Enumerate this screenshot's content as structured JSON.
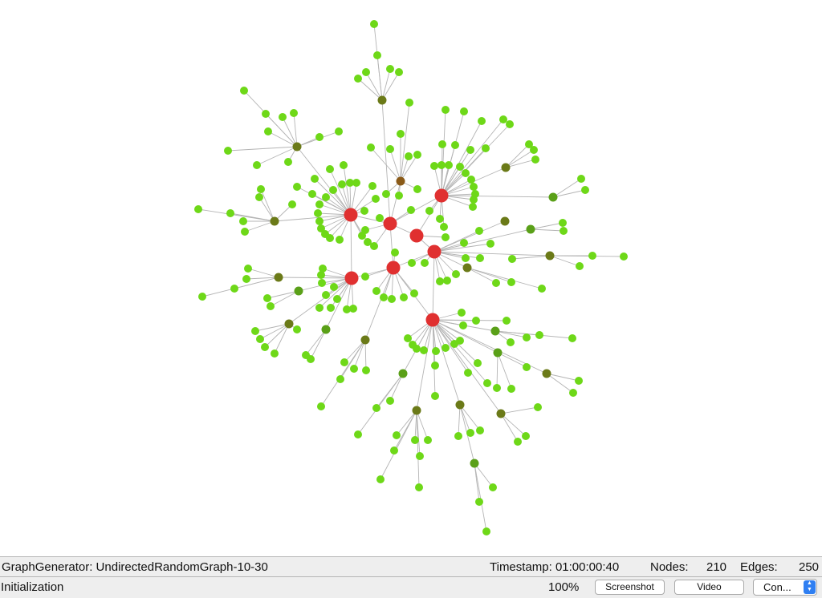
{
  "status_bar": {
    "generator": "GraphGenerator: UndirectedRandomGraph-10-30",
    "timestamp": "Timestamp: 01:00:00:40",
    "nodes_label": "Nodes:",
    "nodes_value": "210",
    "edges_label": "Edges:",
    "edges_value": "250"
  },
  "toolbar": {
    "state": "Initialization",
    "zoom": "100%",
    "screenshot_label": "Screenshot",
    "video_label": "Video",
    "select_value": "Con..."
  },
  "colors": {
    "hub": "#e03030",
    "leaf": "#6ed818",
    "mid": "#5aa018",
    "dark": "#6b7a18",
    "brown": "#8a5a18",
    "edge": "#b4b4b4"
  }
}
